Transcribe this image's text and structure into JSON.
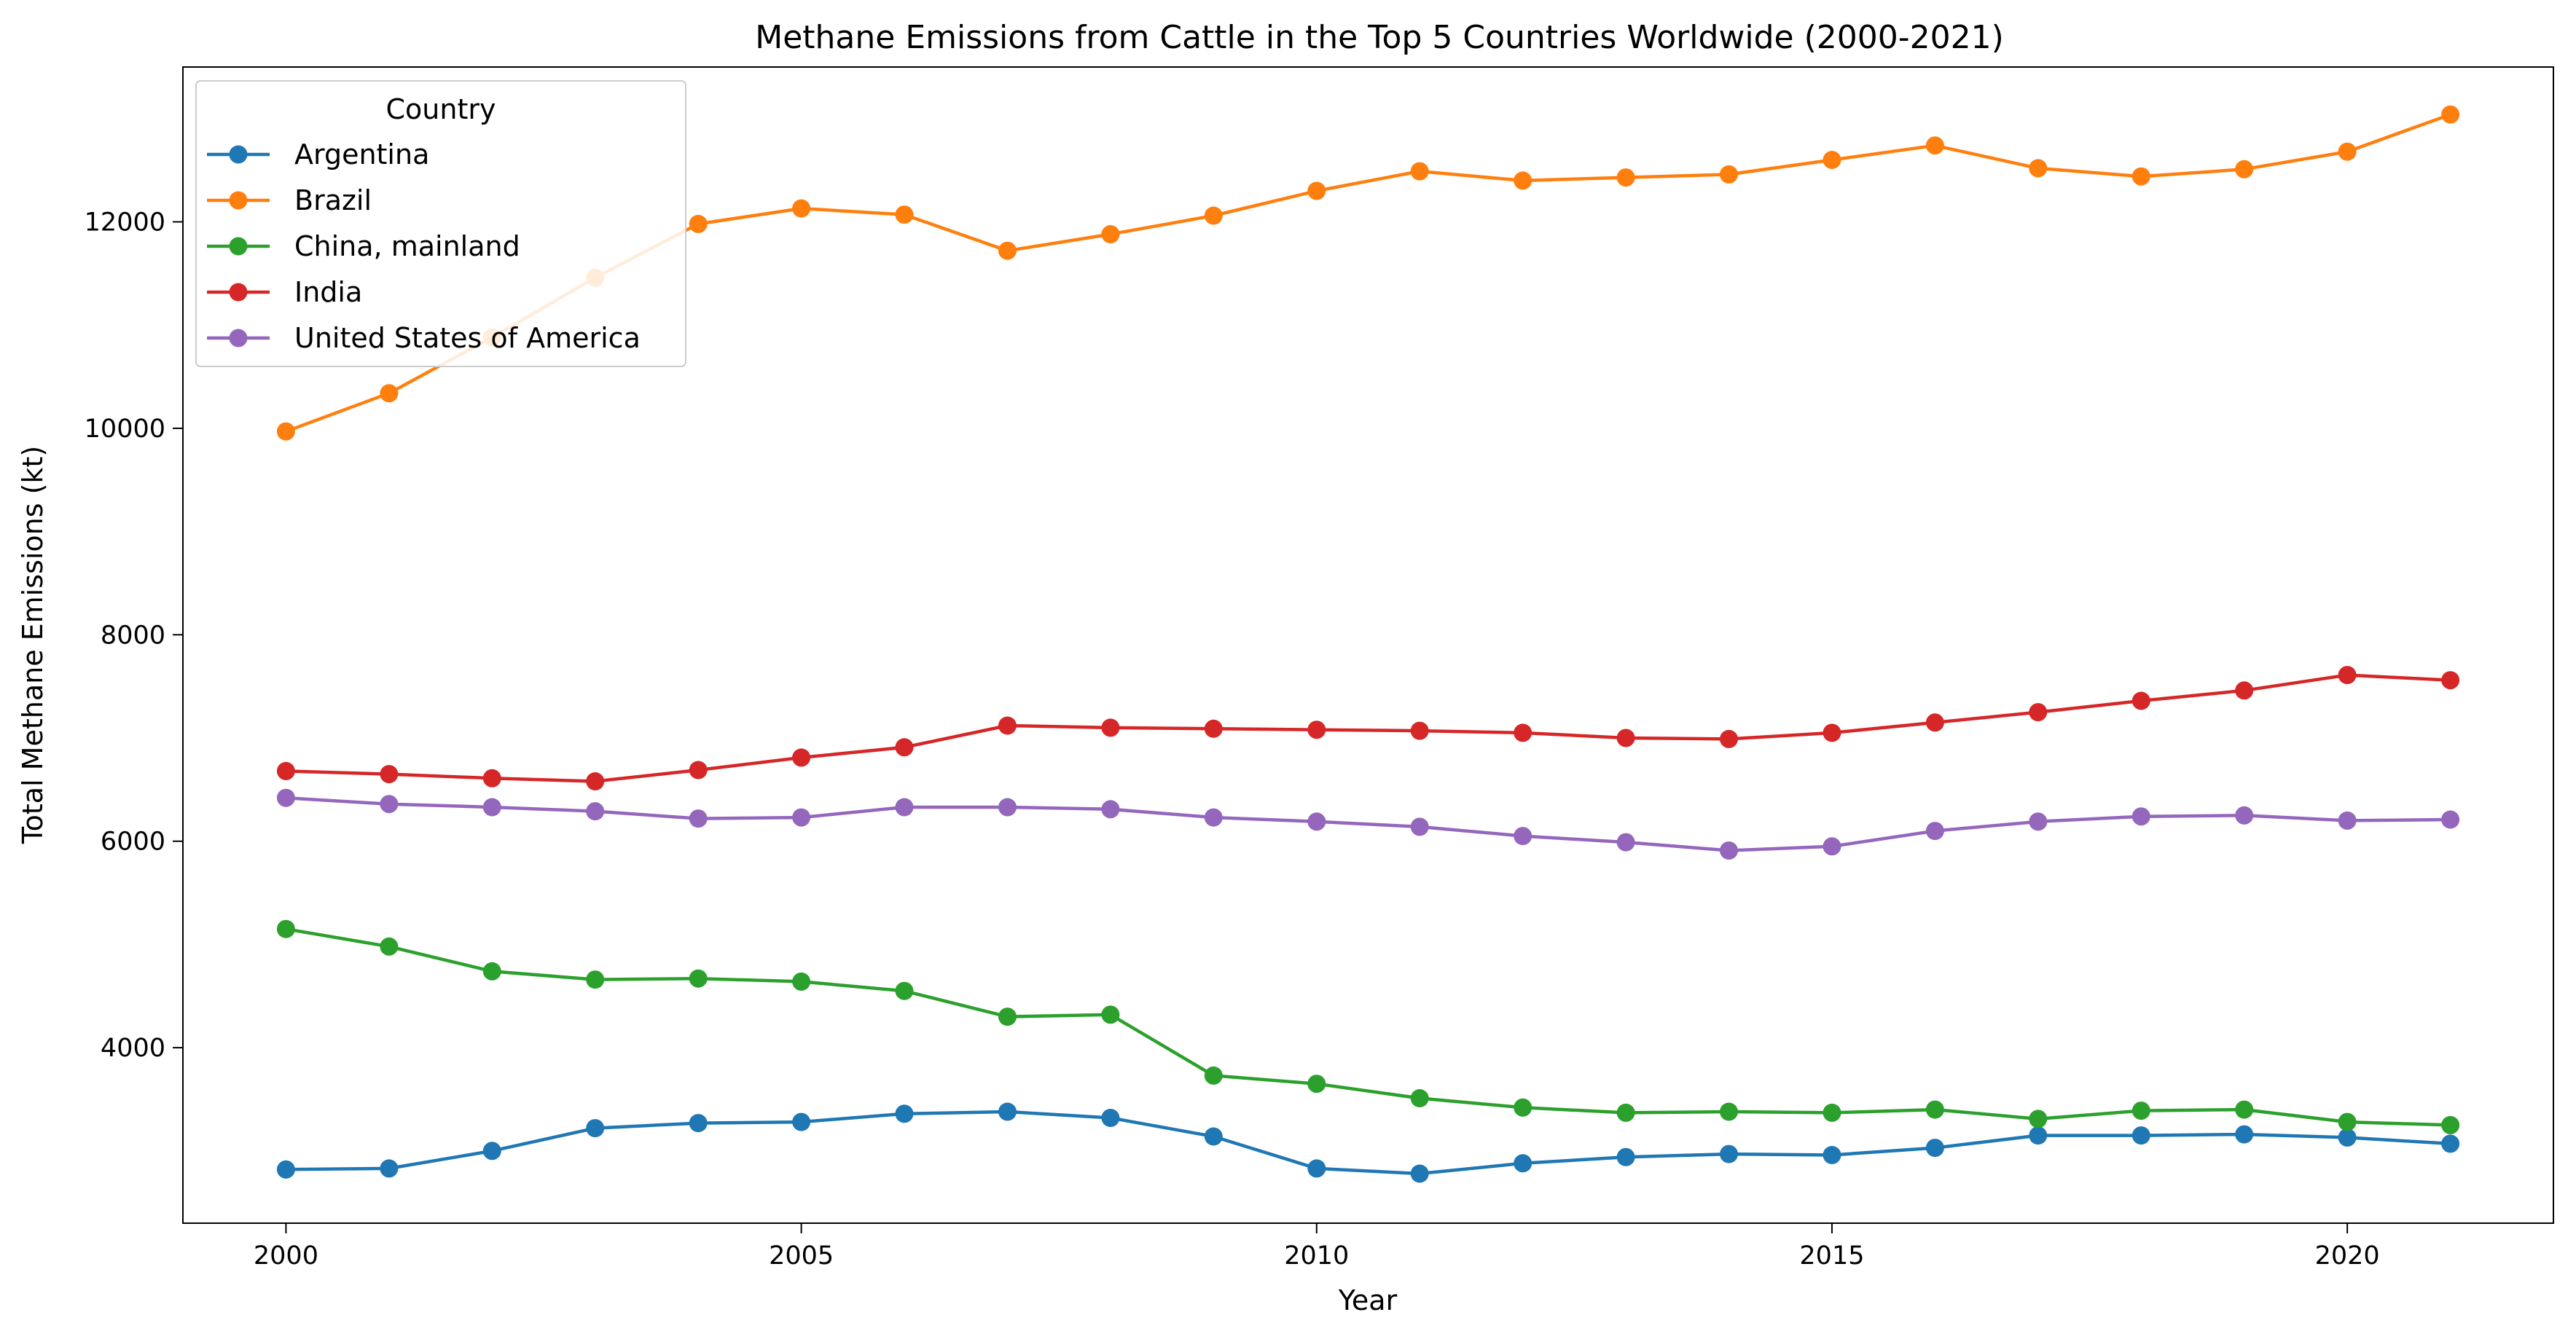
{
  "chart_data": {
    "type": "line",
    "title": "Methane Emissions from Cattle in the Top 5 Countries Worldwide (2000-2021)",
    "xlabel": "Year",
    "ylabel": "Total Methane Emissions (kt)",
    "xlim": [
      1999,
      2022
    ],
    "ylim": [
      2300,
      13500
    ],
    "xticks": [
      2000,
      2005,
      2010,
      2015,
      2020
    ],
    "yticks": [
      4000,
      6000,
      8000,
      10000,
      12000
    ],
    "grid": false,
    "legend": {
      "title": "Country",
      "position": "top-left"
    },
    "x": [
      2000,
      2001,
      2002,
      2003,
      2004,
      2005,
      2006,
      2007,
      2008,
      2009,
      2010,
      2011,
      2012,
      2013,
      2014,
      2015,
      2016,
      2017,
      2018,
      2019,
      2020,
      2021
    ],
    "series": [
      {
        "name": "Argentina",
        "color": "#1f77b4",
        "values": [
          2820,
          2830,
          3000,
          3220,
          3270,
          3280,
          3360,
          3380,
          3320,
          3140,
          2830,
          2780,
          2880,
          2940,
          2970,
          2960,
          3030,
          3150,
          3150,
          3160,
          3130,
          3070
        ]
      },
      {
        "name": "Brazil",
        "color": "#ff7f0e",
        "values": [
          9970,
          10340,
          10880,
          11460,
          11980,
          12130,
          12070,
          11720,
          11880,
          12060,
          12300,
          12490,
          12400,
          12430,
          12460,
          12600,
          12740,
          12520,
          12440,
          12510,
          12680,
          13040
        ]
      },
      {
        "name": "China, mainland",
        "color": "#2ca02c",
        "values": [
          5150,
          4980,
          4740,
          4660,
          4670,
          4640,
          4550,
          4300,
          4320,
          3730,
          3650,
          3510,
          3420,
          3370,
          3380,
          3370,
          3400,
          3310,
          3390,
          3400,
          3280,
          3250
        ]
      },
      {
        "name": "India",
        "color": "#d62728",
        "values": [
          6680,
          6650,
          6610,
          6580,
          6690,
          6810,
          6910,
          7120,
          7100,
          7090,
          7080,
          7070,
          7050,
          7000,
          6990,
          7050,
          7150,
          7250,
          7360,
          7460,
          7610,
          7560
        ]
      },
      {
        "name": "United States of America",
        "color": "#9467bd",
        "values": [
          6420,
          6360,
          6330,
          6290,
          6220,
          6230,
          6330,
          6330,
          6310,
          6230,
          6190,
          6140,
          6050,
          5990,
          5910,
          5950,
          6100,
          6190,
          6240,
          6250,
          6200,
          6210
        ]
      }
    ]
  }
}
